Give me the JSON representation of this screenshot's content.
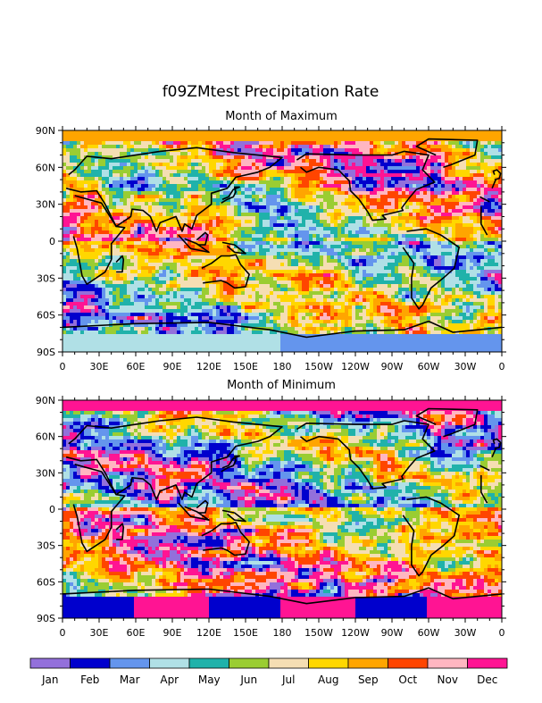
{
  "title": "f09ZMtest Precipitation Rate",
  "panels": [
    {
      "subtitle": "Month of Maximum"
    },
    {
      "subtitle": "Month of Minimum"
    }
  ],
  "lat_labels": [
    "90N",
    "60N",
    "30N",
    "0",
    "30S",
    "60S",
    "90S"
  ],
  "lon_labels": [
    "0",
    "30E",
    "60E",
    "90E",
    "120E",
    "150E",
    "180",
    "150W",
    "120W",
    "90W",
    "60W",
    "30W",
    "0"
  ],
  "legend": {
    "months": [
      "Jan",
      "Feb",
      "Mar",
      "Apr",
      "May",
      "Jun",
      "Jul",
      "Aug",
      "Sep",
      "Oct",
      "Nov",
      "Dec"
    ],
    "colors": [
      "#9370db",
      "#0000cd",
      "#6495ed",
      "#b0e0e6",
      "#20b2aa",
      "#9acd32",
      "#f5deb3",
      "#ffd700",
      "#ffa500",
      "#ff4500",
      "#ffb6c1",
      "#ff1493"
    ]
  }
}
